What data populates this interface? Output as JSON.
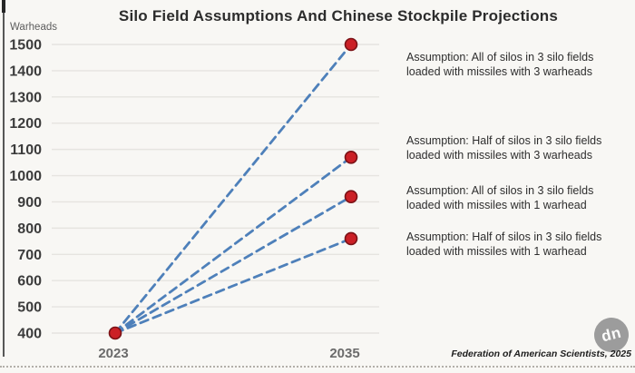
{
  "title": "Silo Field Assumptions And Chinese Stockpile Projections",
  "y_axis_label": "Warheads",
  "footer": {
    "attribution": "Federation of American Scientists, 2025"
  },
  "watermark_text": "dn",
  "colors": {
    "background": "#f8f7f4",
    "grid": "#e6e4e0",
    "line": "#4e80ba",
    "dot_fill": "#cb2026",
    "dot_stroke": "#7a1216",
    "tick_label": "#3c3c3c",
    "x_label": "#6b6b6b",
    "watermark_bg": "#909090"
  },
  "chart_data": {
    "type": "line",
    "title": "Silo Field Assumptions And Chinese Stockpile Projections",
    "ylabel": "Warheads",
    "xlabel": "",
    "x": [
      "2023",
      "2035"
    ],
    "y_ticks": [
      400,
      500,
      600,
      700,
      800,
      900,
      1000,
      1100,
      1200,
      1300,
      1400,
      1500
    ],
    "ylim": [
      400,
      1500
    ],
    "grid": true,
    "line_style": "dashed",
    "legend": "none",
    "start_value": 400,
    "series": [
      {
        "name": "All of silos in 3 silo fields, missiles with 3 warheads",
        "values": [
          400,
          1500
        ]
      },
      {
        "name": "Half of silos in 3 silo fields, missiles with 3 warheads",
        "values": [
          400,
          1070
        ]
      },
      {
        "name": "All of silos in 3 silo fields, missiles with 1 warhead",
        "values": [
          400,
          920
        ]
      },
      {
        "name": "Half of silos in 3 silo fields, missiles with 1 warhead",
        "values": [
          400,
          760
        ]
      }
    ],
    "annotations": [
      {
        "line1": "Assumption: All of silos in 3 silo fields",
        "line2": "loaded with missiles with 3 warheads"
      },
      {
        "line1": "Assumption: Half of silos in 3 silo fields",
        "line2": "loaded with missiles with 3 warheads"
      },
      {
        "line1": "Assumption: All of silos in 3 silo fields",
        "line2": "loaded with missiles with 1 warhead"
      },
      {
        "line1": "Assumption: Half of silos in 3 silo fields",
        "line2": "loaded with missiles with 1 warhead"
      }
    ]
  }
}
